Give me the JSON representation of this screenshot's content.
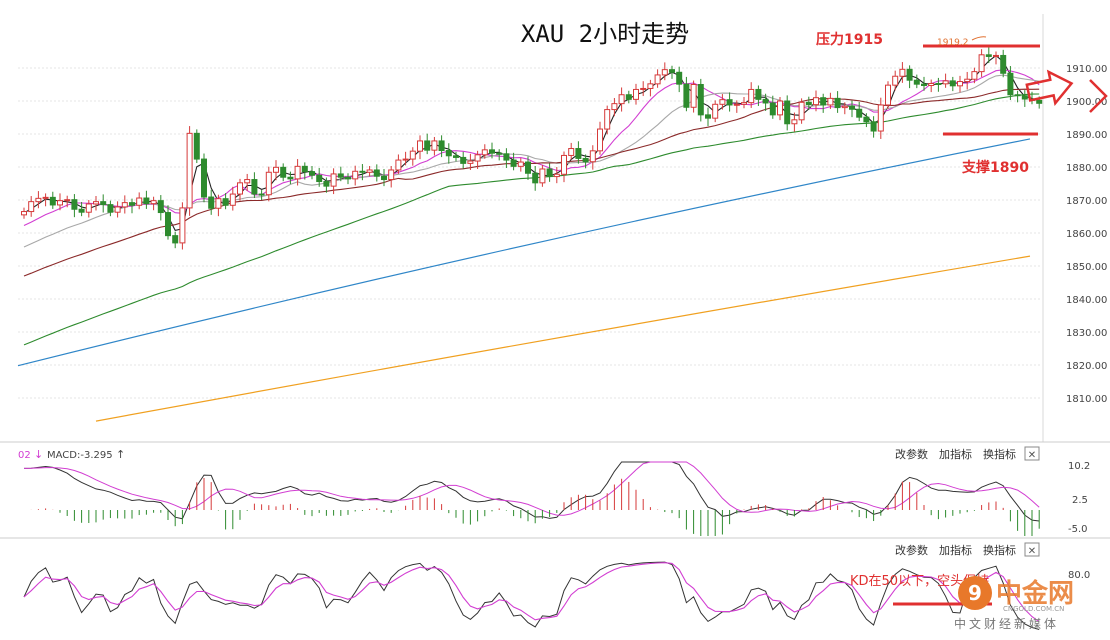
{
  "title": "XAU 2小时走势",
  "resistance": {
    "label": "压力1915",
    "level": 1915
  },
  "support": {
    "label": "支撑1890",
    "level": 1890
  },
  "peak_annotation": "1919.2",
  "kd_note": "KD在50以下，空头保持",
  "macd_label": "MACD:-3.295",
  "macd_prefix": "02",
  "macd_up_arrow": "↑",
  "macd_down_arrow": "↓",
  "indicator_buttons": [
    "改参数",
    "加指标",
    "换指标"
  ],
  "close_glyph": "✕",
  "watermark": {
    "brand": "中金网",
    "url": "CNGOLD.COM.CN",
    "tagline": "中文财经新媒体",
    "logo_char": "9"
  },
  "colors": {
    "up": "#d63a3a",
    "down": "#2e8b2e",
    "grid": "#e4e4e4",
    "ma_black": "#222222",
    "ma_magenta": "#d23ed2",
    "ma_gray": "#a8a8a8",
    "ma_brown": "#8b2a2a",
    "ma_green": "#2e8b2e",
    "ma_blue": "#2f86c8",
    "ma_orange": "#f0a020",
    "annotation_red": "#e03030",
    "axis_text": "#444444",
    "kd_k": "#333333",
    "kd_d": "#d23ed2"
  },
  "chart_data": [
    {
      "type": "candlestick",
      "title": "XAU 2小时走势",
      "y_ticks": [
        "1910.00",
        "1900.00",
        "1890.00",
        "1880.00",
        "1870.00",
        "1860.00",
        "1850.00",
        "1840.00",
        "1830.00",
        "1820.00",
        "1810.00"
      ],
      "ylim": [
        1801,
        1922
      ],
      "close": [
        1866.5,
        1869.5,
        1870.5,
        1870.8,
        1868.5,
        1869.8,
        1870.1,
        1867.2,
        1866.3,
        1868.8,
        1869.5,
        1868.6,
        1866.3,
        1867.9,
        1869.2,
        1868.4,
        1870.6,
        1868.9,
        1869.8,
        1866.2,
        1859.2,
        1857.0,
        1867.6,
        1890.2,
        1882.4,
        1870.9,
        1867.5,
        1870.4,
        1868.4,
        1871.8,
        1875.2,
        1876.2,
        1871.8,
        1871.6,
        1878.4,
        1879.9,
        1876.9,
        1876.4,
        1880.2,
        1878.6,
        1877.5,
        1875.6,
        1874.2,
        1877.9,
        1876.9,
        1876.4,
        1878.7,
        1878.4,
        1879.1,
        1877.2,
        1876.2,
        1879.1,
        1882.1,
        1882.4,
        1884.8,
        1887.9,
        1885.1,
        1887.9,
        1885.0,
        1883.4,
        1882.9,
        1881.1,
        1881.8,
        1883.7,
        1885.2,
        1884.2,
        1884.0,
        1882.1,
        1880.2,
        1881.5,
        1878.1,
        1875.2,
        1879.4,
        1877.1,
        1877.8,
        1883.5,
        1885.6,
        1882.6,
        1881.6,
        1884.9,
        1891.5,
        1897.4,
        1899.2,
        1901.9,
        1900.5,
        1903.5,
        1903.8,
        1905.2,
        1907.9,
        1909.5,
        1908.7,
        1905.1,
        1898.1,
        1905.0,
        1895.8,
        1894.8,
        1899.0,
        1900.4,
        1898.8,
        1899.0,
        1899.5,
        1903.5,
        1900.5,
        1899.4,
        1895.8,
        1900.0,
        1893.1,
        1894.3,
        1899.6,
        1898.9,
        1901.0,
        1898.8,
        1900.8,
        1898.0,
        1898.4,
        1897.5,
        1895.1,
        1893.7,
        1890.9,
        1898.8,
        1904.8,
        1907.5,
        1909.6,
        1906.3,
        1905.1,
        1904.7,
        1905.3,
        1905.2,
        1906.1,
        1904.6,
        1905.9,
        1906.6,
        1908.9,
        1914.0,
        1913.5,
        1913.8,
        1908.4,
        1901.9,
        1901.6,
        1900.6,
        1900.2,
        1899.3
      ]
    },
    {
      "type": "macd",
      "label": "MACD:-3.295",
      "y_ticks": [
        "10.2",
        "2.5",
        "-5.0"
      ]
    },
    {
      "type": "kd",
      "y_ticks": [
        "80.0"
      ]
    }
  ]
}
